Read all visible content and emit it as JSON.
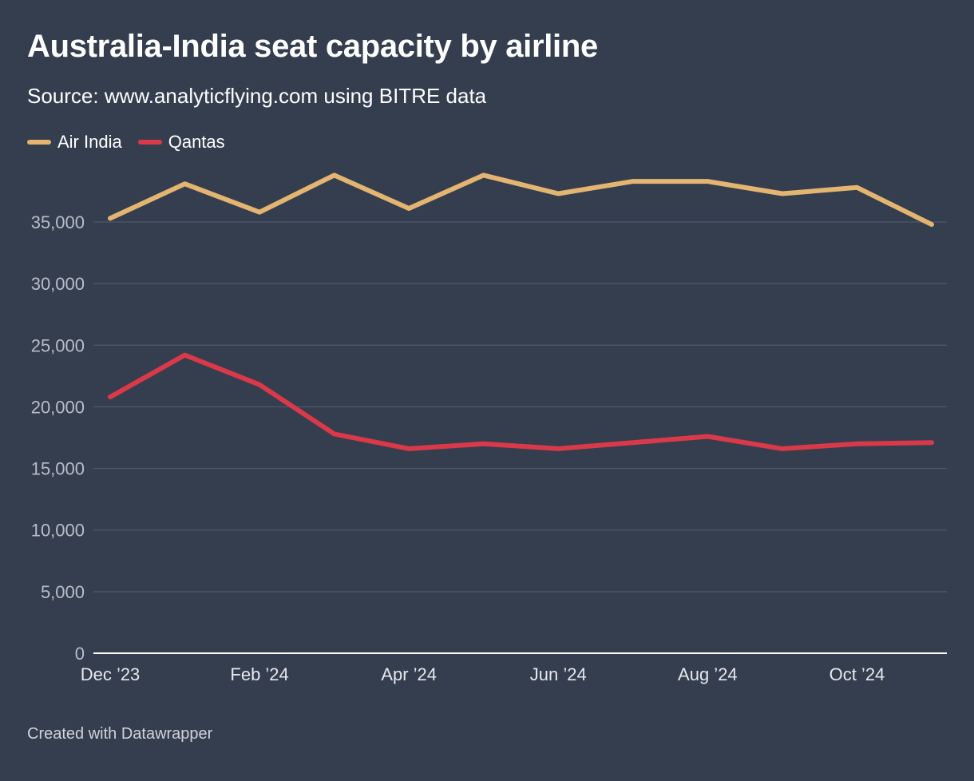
{
  "header": {
    "title": "Australia-India seat capacity by airline",
    "subtitle": "Source: www.analyticflying.com using BITRE data"
  },
  "footer": {
    "credit": "Created with Datawrapper"
  },
  "colors": {
    "background": "#343e4f",
    "grid": "#4f596a",
    "axis": "#ffffff",
    "y_tick_text": "#b9bec7",
    "x_tick_text": "#e6e8ec"
  },
  "chart_data": {
    "type": "line",
    "title": "Australia-India seat capacity by airline",
    "subtitle": "Source: www.analyticflying.com using BITRE data",
    "x": [
      "Dec 2023",
      "Jan 2024",
      "Feb 2024",
      "Mar 2024",
      "Apr 2024",
      "May 2024",
      "Jun 2024",
      "Jul 2024",
      "Aug 2024",
      "Sep 2024",
      "Oct 2024",
      "Nov 2024"
    ],
    "x_tick_labels": [
      {
        "index": 0,
        "label": "Dec ’23"
      },
      {
        "index": 2,
        "label": "Feb ’24"
      },
      {
        "index": 4,
        "label": "Apr ’24"
      },
      {
        "index": 6,
        "label": "Jun ’24"
      },
      {
        "index": 8,
        "label": "Aug ’24"
      },
      {
        "index": 10,
        "label": "Oct ’24"
      }
    ],
    "y_ticks": [
      0,
      5000,
      10000,
      15000,
      20000,
      25000,
      30000,
      35000
    ],
    "y_tick_labels": [
      "0",
      "5,000",
      "10,000",
      "15,000",
      "20,000",
      "25,000",
      "30,000",
      "35,000"
    ],
    "ylim": [
      0,
      39500
    ],
    "grid": true,
    "legend_position": "top-left",
    "series": [
      {
        "name": "Air India",
        "color": "#e4b570",
        "values": [
          35300,
          38100,
          35800,
          38800,
          36100,
          38800,
          37300,
          38300,
          38300,
          37300,
          37800,
          34800
        ]
      },
      {
        "name": "Qantas",
        "color": "#d93948",
        "values": [
          20800,
          24200,
          21800,
          17800,
          16600,
          17000,
          16600,
          17100,
          17600,
          16600,
          17000,
          17100
        ]
      }
    ]
  }
}
